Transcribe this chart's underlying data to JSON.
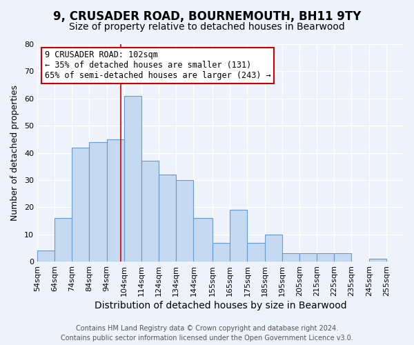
{
  "title": "9, CRUSADER ROAD, BOURNEMOUTH, BH11 9TY",
  "subtitle": "Size of property relative to detached houses in Bearwood",
  "xlabel": "Distribution of detached houses by size in Bearwood",
  "ylabel": "Number of detached properties",
  "bin_labels": [
    "54sqm",
    "64sqm",
    "74sqm",
    "84sqm",
    "94sqm",
    "104sqm",
    "114sqm",
    "124sqm",
    "134sqm",
    "144sqm",
    "155sqm",
    "165sqm",
    "175sqm",
    "185sqm",
    "195sqm",
    "205sqm",
    "215sqm",
    "225sqm",
    "235sqm",
    "245sqm",
    "255sqm"
  ],
  "bin_edges": [
    54,
    64,
    74,
    84,
    94,
    104,
    114,
    124,
    134,
    144,
    155,
    165,
    175,
    185,
    195,
    205,
    215,
    225,
    235,
    245,
    255
  ],
  "bar_heights": [
    4,
    16,
    42,
    44,
    45,
    61,
    37,
    32,
    30,
    16,
    7,
    19,
    7,
    10,
    3,
    3,
    3,
    3,
    0,
    1,
    0
  ],
  "bar_color": "#c5d9f1",
  "bar_edge_color": "#6699cc",
  "marker_x": 102,
  "marker_line_color": "#cc0000",
  "annotation_box_color": "#ffffff",
  "annotation_box_edge_color": "#cc0000",
  "annotation_line1": "9 CRUSADER ROAD: 102sqm",
  "annotation_line2": "← 35% of detached houses are smaller (131)",
  "annotation_line3": "65% of semi-detached houses are larger (243) →",
  "ylim": [
    0,
    80
  ],
  "yticks": [
    0,
    10,
    20,
    30,
    40,
    50,
    60,
    70,
    80
  ],
  "xlim_min": 54,
  "xlim_max": 265,
  "footer_line1": "Contains HM Land Registry data © Crown copyright and database right 2024.",
  "footer_line2": "Contains public sector information licensed under the Open Government Licence v3.0.",
  "background_color": "#eef2fa",
  "plot_background_color": "#eef2fa",
  "grid_color": "#ffffff",
  "title_fontsize": 12,
  "subtitle_fontsize": 10,
  "xlabel_fontsize": 10,
  "ylabel_fontsize": 9,
  "tick_fontsize": 8,
  "annotation_fontsize": 8.5,
  "footer_fontsize": 7
}
